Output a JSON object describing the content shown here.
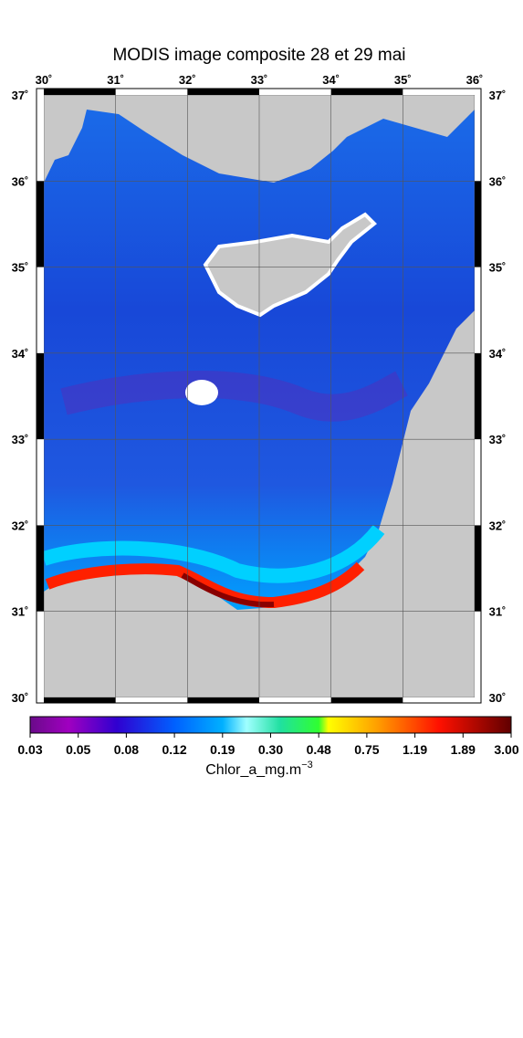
{
  "title": "MODIS image composite 28 et 29 mai",
  "lon_ticks": [
    "30˚",
    "31˚",
    "32˚",
    "33˚",
    "34˚",
    "35˚",
    "36˚"
  ],
  "lat_ticks": [
    "37˚",
    "36˚",
    "35˚",
    "34˚",
    "33˚",
    "32˚",
    "31˚",
    "30˚"
  ],
  "colorbar": {
    "labels": [
      "0.03",
      "0.05",
      "0.08",
      "0.12",
      "0.19",
      "0.30",
      "0.48",
      "0.75",
      "1.19",
      "1.89",
      "3.00"
    ],
    "title": "Chlor_a_mg.m",
    "title_exponent": "−3"
  }
}
